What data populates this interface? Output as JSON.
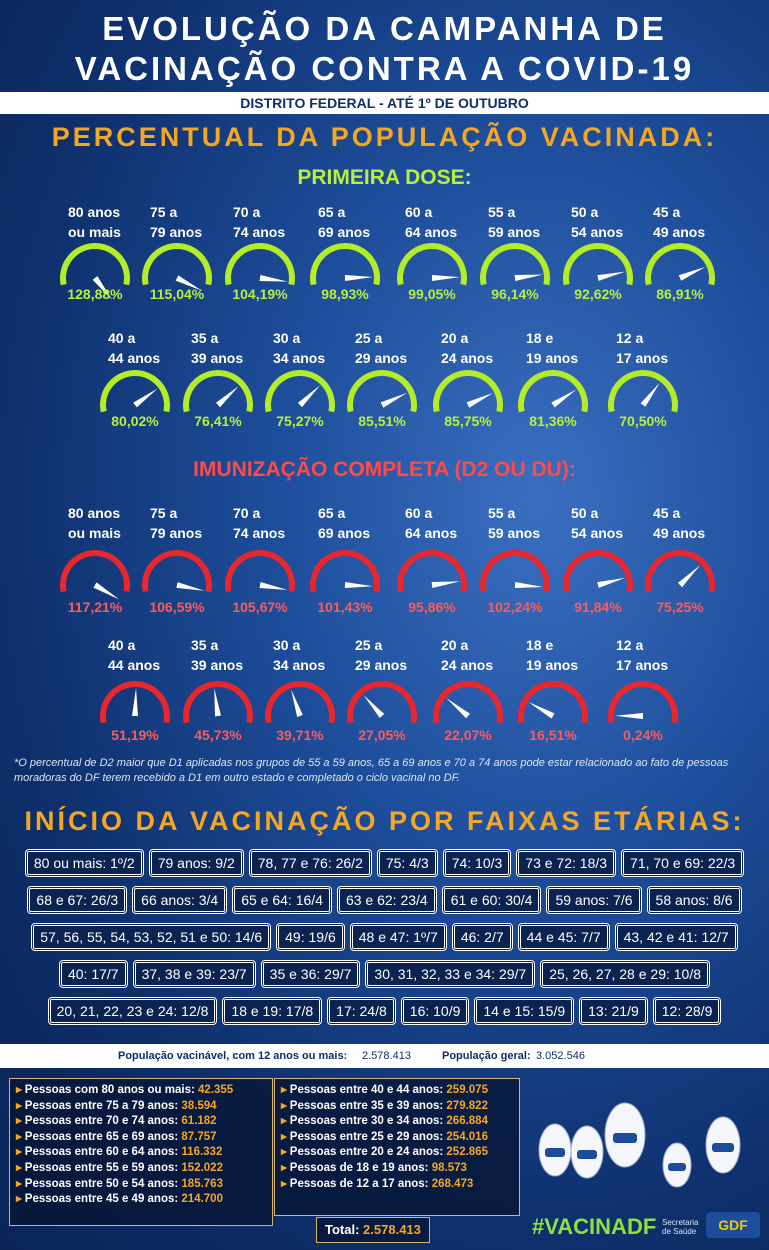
{
  "title": {
    "line1": "EVOLUÇÃO DA CAMPANHA DE",
    "line2": "VACINAÇÃO CONTRA A COVID-19"
  },
  "subtitle": "DISTRITO FEDERAL - ATÉ 1º DE OUTUBRO",
  "section1": {
    "heading": "PERCENTUAL DA POPULAÇÃO VACINADA:",
    "first_dose": {
      "heading": "PRIMEIRA DOSE:",
      "gauges": [
        {
          "label": [
            "80 anos",
            "ou mais"
          ],
          "value": 128.88,
          "value_label": "128,88%"
        },
        {
          "label": [
            "75 a",
            "79 anos"
          ],
          "value": 115.04,
          "value_label": "115,04%"
        },
        {
          "label": [
            "70 a",
            "74 anos"
          ],
          "value": 104.19,
          "value_label": "104,19%"
        },
        {
          "label": [
            "65 a",
            "69 anos"
          ],
          "value": 98.93,
          "value_label": "98,93%"
        },
        {
          "label": [
            "60 a",
            "64 anos"
          ],
          "value": 99.05,
          "value_label": "99,05%"
        },
        {
          "label": [
            "55 a",
            "59 anos"
          ],
          "value": 96.14,
          "value_label": "96,14%"
        },
        {
          "label": [
            "50 a",
            "54 anos"
          ],
          "value": 92.62,
          "value_label": "92,62%"
        },
        {
          "label": [
            "45 a",
            "49 anos"
          ],
          "value": 86.91,
          "value_label": "86,91%"
        },
        {
          "label": [
            "40 a",
            "44 anos"
          ],
          "value": 80.02,
          "value_label": "80,02%"
        },
        {
          "label": [
            "35 a",
            "39 anos"
          ],
          "value": 76.41,
          "value_label": "76,41%"
        },
        {
          "label": [
            "30 a",
            "34 anos"
          ],
          "value": 75.27,
          "value_label": "75,27%"
        },
        {
          "label": [
            "25 a",
            "29 anos"
          ],
          "value": 85.51,
          "value_label": "85,51%"
        },
        {
          "label": [
            "20 a",
            "24 anos"
          ],
          "value": 85.75,
          "value_label": "85,75%"
        },
        {
          "label": [
            "18 e",
            "19 anos"
          ],
          "value": 81.36,
          "value_label": "81,36%"
        },
        {
          "label": [
            "12 a",
            "17 anos"
          ],
          "value": 70.5,
          "value_label": "70,50%"
        }
      ]
    },
    "full": {
      "heading": "IMUNIZAÇÃO COMPLETA (D2 OU DU):",
      "gauges": [
        {
          "label": [
            "80 anos",
            "ou mais"
          ],
          "value": 117.21,
          "value_label": "117,21%"
        },
        {
          "label": [
            "75 a",
            "79 anos"
          ],
          "value": 106.59,
          "value_label": "106,59%"
        },
        {
          "label": [
            "70 a",
            "74 anos"
          ],
          "value": 105.67,
          "value_label": "105,67%"
        },
        {
          "label": [
            "65 a",
            "69 anos"
          ],
          "value": 101.43,
          "value_label": "101,43%"
        },
        {
          "label": [
            "60 a",
            "64 anos"
          ],
          "value": 95.86,
          "value_label": "95,86%"
        },
        {
          "label": [
            "55 a",
            "59 anos"
          ],
          "value": 102.24,
          "value_label": "102,24%"
        },
        {
          "label": [
            "50 a",
            "54 anos"
          ],
          "value": 91.84,
          "value_label": "91,84%"
        },
        {
          "label": [
            "45 a",
            "49 anos"
          ],
          "value": 75.25,
          "value_label": "75,25%"
        },
        {
          "label": [
            "40 a",
            "44 anos"
          ],
          "value": 51.19,
          "value_label": "51,19%"
        },
        {
          "label": [
            "35 a",
            "39 anos"
          ],
          "value": 45.73,
          "value_label": "45,73%"
        },
        {
          "label": [
            "30 a",
            "34 anos"
          ],
          "value": 39.71,
          "value_label": "39,71%"
        },
        {
          "label": [
            "25 a",
            "29 anos"
          ],
          "value": 27.05,
          "value_label": "27,05%"
        },
        {
          "label": [
            "20 a",
            "24 anos"
          ],
          "value": 22.07,
          "value_label": "22,07%"
        },
        {
          "label": [
            "18 e",
            "19 anos"
          ],
          "value": 16.51,
          "value_label": "16,51%"
        },
        {
          "label": [
            "12 a",
            "17 anos"
          ],
          "value": 0.24,
          "value_label": "0,24%"
        }
      ]
    },
    "note": "*O percentual de D2 maior que D1 aplicadas nos grupos de 55 a 59 anos, 65 a 69 anos  e 70 a 74 anos pode estar relacionado ao fato de pessoas moradoras do DF terem recebido a D1 em outro estado e completado o ciclo vacinal no DF."
  },
  "section2": {
    "heading": "INÍCIO DA VACINAÇÃO POR FAIXAS ETÁRIAS:",
    "rows": [
      [
        "80 ou mais: 1º/2",
        "79 anos: 9/2",
        "78, 77 e 76: 26/2",
        "75: 4/3",
        "74: 10/3",
        "73 e 72: 18/3",
        "71, 70 e 69: 22/3"
      ],
      [
        "68 e 67: 26/3",
        "66 anos: 3/4",
        "65 e 64: 16/4",
        "63 e 62: 23/4",
        "61 e 60: 30/4",
        "59 anos: 7/6",
        "58 anos: 8/6"
      ],
      [
        "57, 56, 55, 54, 53, 52, 51 e 50: 14/6",
        "49: 19/6",
        "48 e 47: 1º/7",
        "46: 2/7",
        "44 e 45: 7/7",
        "43, 42 e 41: 12/7"
      ],
      [
        "40: 17/7",
        "37, 38 e 39: 23/7",
        "35 e 36: 29/7",
        "30, 31, 32, 33  e 34: 29/7",
        "25, 26, 27, 28 e 29: 10/8"
      ],
      [
        "20, 21, 22, 23 e 24: 12/8",
        "18 e 19: 17/8",
        "17: 24/8",
        "16: 10/9",
        "14 e 15: 15/9",
        "13: 21/9",
        "12: 28/9"
      ]
    ]
  },
  "population": {
    "eligible_label": "População vacinável, com 12 anos ou mais:",
    "eligible_value": "2.578.413",
    "general_label": "População geral:",
    "general_value": "3.052.546"
  },
  "groups": {
    "left": [
      {
        "label": "Pessoas com 80 anos ou mais:",
        "value": "42.355"
      },
      {
        "label": "Pessoas entre 75 a 79 anos:",
        "value": "38.594"
      },
      {
        "label": "Pessoas entre 70 e 74 anos:",
        "value": "61.182"
      },
      {
        "label": "Pessoas entre 65 e 69 anos:",
        "value": "87.757"
      },
      {
        "label": "Pessoas entre 60 e 64 anos:",
        "value": "116.332"
      },
      {
        "label": "Pessoas entre 55 e 59 anos:",
        "value": "152.022"
      },
      {
        "label": "Pessoas entre 50 e 54 anos:",
        "value": "185.763"
      },
      {
        "label": "Pessoas entre 45 e 49 anos:",
        "value": "214.700"
      }
    ],
    "right": [
      {
        "label": "Pessoas entre 40 e 44 anos:",
        "value": "259.075"
      },
      {
        "label": "Pessoas entre 35 e 39 anos:",
        "value": "279.822"
      },
      {
        "label": "Pessoas entre 30 e 34 anos:",
        "value": "266.884"
      },
      {
        "label": "Pessoas entre 25 e 29 anos:",
        "value": "254.016"
      },
      {
        "label": "Pessoas entre 20 e 24 anos:",
        "value": "252.865"
      },
      {
        "label": "Pessoas de 18 e 19 anos:",
        "value": "98.573"
      },
      {
        "label": "Pessoas de 12 a 17 anos:",
        "value": "268.473"
      }
    ],
    "total": {
      "label": "Total:",
      "value": "2.578.413"
    }
  },
  "footer": {
    "hashtag": "#VACINADF",
    "secretaria": "Secretaria de Saúde",
    "gdf": "GDF"
  }
}
